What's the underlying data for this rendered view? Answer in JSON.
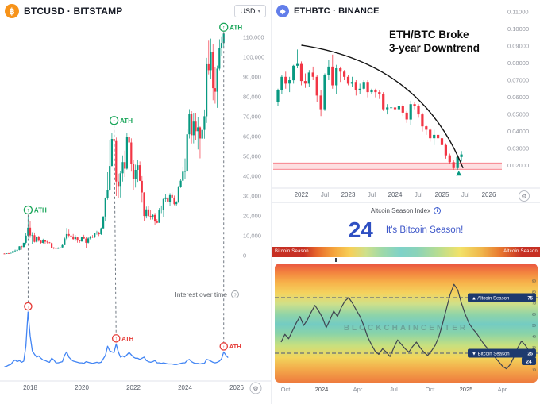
{
  "btc_panel": {
    "title": "BTCUSD · BITSTAMP",
    "currency": "USD",
    "ath_label": "ATH",
    "trends_title": "Interest over time",
    "y_tick_labels": [
      "110,000",
      "100,000",
      "90,000",
      "80,000",
      "70,000",
      "60,000",
      "50,000",
      "40,000",
      "30,000",
      "20,000",
      "10,000",
      "0"
    ],
    "x_tick_labels": [
      "2018",
      "2020",
      "2022",
      "2024",
      "2026"
    ]
  },
  "eth_panel": {
    "title": "ETHBTC · BINANCE",
    "annotation_line1": "ETH/BTC Broke",
    "annotation_line2": "3-year Downtrend",
    "y_tick_labels": [
      "0.11000",
      "0.10000",
      "0.09000",
      "0.08000",
      "0.07000",
      "0.06000",
      "0.05000",
      "0.04000",
      "0.03000",
      "0.02000"
    ],
    "x_tick_labels": [
      "2022",
      "Jul",
      "2023",
      "Jul",
      "2024",
      "Jul",
      "2025",
      "Jul",
      "2026"
    ]
  },
  "season_panel": {
    "header": "Altcoin Season Index",
    "value": "24",
    "status": "It's Bitcoin Season!",
    "bar_left_label": "Bitcoin Season",
    "bar_right_label": "Altcoin Season",
    "altcoin_badge": "Altcoin Season",
    "altcoin_threshold": "75",
    "bitcoin_badge": "Bitcoin Season",
    "bitcoin_threshold": "25",
    "current_badge": "24",
    "watermark": "BLOCKCHAINCENTER",
    "x_tick_labels": [
      "Oct",
      "2024",
      "Apr",
      "Jul",
      "Oct",
      "2025",
      "Apr"
    ]
  },
  "chart_data": [
    {
      "id": "btcusd",
      "type": "candlestick",
      "title": "BTCUSD · BITSTAMP",
      "ylabel": "USD",
      "ylim": [
        0,
        115000
      ],
      "x_start_year": 2017.0,
      "x_step_years": 0.083333,
      "x_tick_years": [
        2018,
        2020,
        2022,
        2024,
        2026
      ],
      "ath_markers": [
        {
          "year": 2017.92,
          "price": 19800
        },
        {
          "year": 2021.25,
          "price": 64900
        },
        {
          "year": 2025.5,
          "price": 111900
        }
      ],
      "ohlc": [
        [
          1000,
          1160,
          750,
          970
        ],
        [
          970,
          1200,
          920,
          1190
        ],
        [
          1190,
          1290,
          900,
          1080
        ],
        [
          1080,
          1350,
          1060,
          1350
        ],
        [
          1350,
          2760,
          1340,
          2300
        ],
        [
          2300,
          3000,
          2100,
          2480
        ],
        [
          2480,
          2920,
          1830,
          2870
        ],
        [
          2870,
          4750,
          2650,
          4700
        ],
        [
          4700,
          4950,
          2970,
          4340
        ],
        [
          4340,
          6450,
          4150,
          6450
        ],
        [
          6450,
          11400,
          5400,
          10100
        ],
        [
          10100,
          19800,
          9000,
          14100
        ],
        [
          14100,
          17200,
          9000,
          10200
        ],
        [
          10200,
          11790,
          6000,
          10300
        ],
        [
          10300,
          11650,
          6600,
          6930
        ],
        [
          6930,
          9760,
          6430,
          9240
        ],
        [
          9240,
          9990,
          7040,
          7490
        ],
        [
          7490,
          7750,
          5770,
          6400
        ],
        [
          6400,
          8500,
          6070,
          7730
        ],
        [
          7730,
          7760,
          5880,
          7030
        ],
        [
          7030,
          7400,
          6100,
          6620
        ],
        [
          6620,
          6850,
          6200,
          6300
        ],
        [
          6300,
          6550,
          3650,
          4020
        ],
        [
          4020,
          4300,
          3150,
          3740
        ],
        [
          3740,
          4100,
          3350,
          3430
        ],
        [
          3430,
          4200,
          3350,
          3820
        ],
        [
          3820,
          4130,
          3660,
          4100
        ],
        [
          4100,
          5600,
          4050,
          5270
        ],
        [
          5270,
          9070,
          5270,
          8560
        ],
        [
          8560,
          13880,
          7480,
          10820
        ],
        [
          10820,
          13130,
          9080,
          10080
        ],
        [
          10080,
          12320,
          9350,
          9630
        ],
        [
          9630,
          10900,
          7700,
          8290
        ],
        [
          8290,
          10350,
          7300,
          9150
        ],
        [
          9150,
          9520,
          6520,
          7550
        ],
        [
          7550,
          7750,
          6430,
          7190
        ],
        [
          7190,
          9570,
          6850,
          9350
        ],
        [
          9350,
          10500,
          8400,
          8540
        ],
        [
          8540,
          9200,
          3850,
          6440
        ],
        [
          6440,
          9450,
          6150,
          8620
        ],
        [
          8620,
          10000,
          8100,
          9450
        ],
        [
          9450,
          10380,
          8830,
          9140
        ],
        [
          9140,
          11440,
          8900,
          11340
        ],
        [
          11340,
          12480,
          10560,
          11650
        ],
        [
          11650,
          12050,
          9820,
          10780
        ],
        [
          10780,
          14100,
          10400,
          13800
        ],
        [
          13800,
          19860,
          13200,
          19700
        ],
        [
          19700,
          29300,
          17600,
          29000
        ],
        [
          29000,
          42000,
          28130,
          33100
        ],
        [
          33100,
          58350,
          32320,
          45140
        ],
        [
          45140,
          61800,
          44950,
          58790
        ],
        [
          58790,
          64900,
          46930,
          57720
        ],
        [
          57720,
          59500,
          30000,
          37330
        ],
        [
          37330,
          41330,
          28800,
          35040
        ],
        [
          35040,
          42450,
          29300,
          41460
        ],
        [
          41460,
          50500,
          37330,
          47110
        ],
        [
          47110,
          52920,
          39600,
          43790
        ],
        [
          43790,
          62000,
          43290,
          60000
        ],
        [
          60000,
          62500,
          53260,
          57000
        ],
        [
          57000,
          59100,
          42330,
          46210
        ],
        [
          46210,
          47990,
          32930,
          38480
        ],
        [
          38480,
          45820,
          34300,
          43190
        ],
        [
          43190,
          48190,
          37160,
          45540
        ],
        [
          45540,
          47450,
          37580,
          37630
        ],
        [
          37630,
          40020,
          26700,
          31790
        ],
        [
          31790,
          31960,
          17590,
          19940
        ],
        [
          19940,
          24670,
          18780,
          23290
        ],
        [
          23290,
          25200,
          19520,
          20050
        ],
        [
          20050,
          22790,
          18130,
          19420
        ],
        [
          19420,
          21080,
          18190,
          20490
        ],
        [
          20490,
          21470,
          15480,
          17160
        ],
        [
          17160,
          18370,
          16260,
          16540
        ],
        [
          16540,
          23950,
          16490,
          23130
        ],
        [
          23130,
          25250,
          21400,
          23140
        ],
        [
          23140,
          29180,
          19550,
          28470
        ],
        [
          28470,
          31050,
          26940,
          29230
        ],
        [
          29230,
          29820,
          25810,
          27210
        ],
        [
          27210,
          31430,
          24800,
          30470
        ],
        [
          30470,
          31850,
          28860,
          29230
        ],
        [
          29230,
          30240,
          25350,
          25930
        ],
        [
          25930,
          27480,
          24900,
          26960
        ],
        [
          26960,
          35150,
          26540,
          34650
        ],
        [
          34650,
          38400,
          34100,
          37710
        ],
        [
          37710,
          44700,
          37620,
          42270
        ],
        [
          42270,
          48970,
          38500,
          42580
        ],
        [
          42580,
          63930,
          41880,
          61130
        ],
        [
          61130,
          73790,
          59000,
          71280
        ],
        [
          71280,
          72790,
          56500,
          60640
        ],
        [
          60640,
          71950,
          56550,
          67520
        ],
        [
          67520,
          71990,
          58400,
          62670
        ],
        [
          62670,
          69990,
          53500,
          64620
        ],
        [
          64620,
          65100,
          49000,
          58970
        ],
        [
          58970,
          66480,
          52550,
          63330
        ],
        [
          63330,
          73620,
          58900,
          70220
        ],
        [
          70220,
          99650,
          66830,
          96450
        ],
        [
          96450,
          108270,
          91320,
          93430
        ],
        [
          93430,
          109360,
          89160,
          102400
        ],
        [
          102400,
          106500,
          78260,
          84350
        ],
        [
          84350,
          95000,
          76600,
          82550
        ],
        [
          82550,
          95770,
          74430,
          94180
        ],
        [
          94180,
          109000,
          93350,
          104600
        ],
        [
          104600,
          110500,
          100380,
          107170
        ],
        [
          107170,
          112000,
          105000,
          111900
        ]
      ]
    },
    {
      "id": "btc-search-interest",
      "type": "line",
      "title": "Interest over time",
      "ylim": [
        0,
        100
      ],
      "x_start_year": 2017.0,
      "x_step_years": 0.083333,
      "ath_markers": [
        {
          "year": 2017.92,
          "value": 100
        },
        {
          "year": 2021.33,
          "value": 44
        },
        {
          "year": 2025.5,
          "value": 30
        }
      ],
      "values": [
        4,
        5,
        7,
        8,
        13,
        16,
        13,
        15,
        12,
        14,
        40,
        100,
        58,
        32,
        26,
        21,
        23,
        19,
        16,
        15,
        13,
        12,
        19,
        16,
        11,
        11,
        12,
        13,
        24,
        30,
        21,
        17,
        14,
        13,
        12,
        11,
        11,
        10,
        13,
        12,
        11,
        10,
        11,
        12,
        11,
        12,
        18,
        24,
        40,
        32,
        30,
        29,
        44,
        30,
        21,
        23,
        21,
        25,
        29,
        25,
        21,
        19,
        19,
        17,
        19,
        21,
        15,
        13,
        12,
        13,
        15,
        11,
        11,
        10,
        11,
        10,
        9,
        9,
        9,
        8,
        8,
        9,
        10,
        11,
        11,
        15,
        17,
        13,
        11,
        10,
        10,
        9,
        10,
        10,
        17,
        16,
        14,
        12,
        11,
        12,
        14,
        18,
        30,
        24,
        20
      ]
    },
    {
      "id": "ethbtc",
      "type": "candlestick",
      "title": "ETHBTC · BINANCE",
      "ylim": [
        0.013,
        0.117
      ],
      "x_start_year": 2021.5,
      "x_step_years": 0.083333,
      "x_tick_years": [
        2022,
        2022.5,
        2023,
        2023.5,
        2024,
        2024.5,
        2025,
        2025.5,
        2026
      ],
      "support_zone": [
        0.0178,
        0.0215
      ],
      "trendline": {
        "start": [
          2022.0,
          0.0905
        ],
        "control": [
          2024.55,
          0.08
        ],
        "end": [
          2025.45,
          0.0185
        ]
      },
      "breakout_marker": [
        2025.36,
        0.015
      ],
      "ohlc": [
        [
          0.057,
          0.065,
          0.055,
          0.064
        ],
        [
          0.064,
          0.073,
          0.062,
          0.072
        ],
        [
          0.072,
          0.075,
          0.065,
          0.068
        ],
        [
          0.068,
          0.072,
          0.063,
          0.07
        ],
        [
          0.07,
          0.079,
          0.068,
          0.0785
        ],
        [
          0.0785,
          0.088,
          0.077,
          0.0795
        ],
        [
          0.0795,
          0.081,
          0.067,
          0.0695
        ],
        [
          0.0695,
          0.074,
          0.0655,
          0.068
        ],
        [
          0.068,
          0.076,
          0.066,
          0.0745
        ],
        [
          0.0745,
          0.078,
          0.07,
          0.072
        ],
        [
          0.072,
          0.073,
          0.057,
          0.061
        ],
        [
          0.061,
          0.064,
          0.049,
          0.053
        ],
        [
          0.053,
          0.074,
          0.052,
          0.073
        ],
        [
          0.073,
          0.082,
          0.07,
          0.078
        ],
        [
          0.078,
          0.085,
          0.065,
          0.067
        ],
        [
          0.067,
          0.079,
          0.062,
          0.077
        ],
        [
          0.077,
          0.078,
          0.069,
          0.075
        ],
        [
          0.075,
          0.076,
          0.07,
          0.072
        ],
        [
          0.072,
          0.073,
          0.067,
          0.068
        ],
        [
          0.068,
          0.072,
          0.066,
          0.069
        ],
        [
          0.069,
          0.07,
          0.061,
          0.064
        ],
        [
          0.064,
          0.068,
          0.062,
          0.065
        ],
        [
          0.065,
          0.07,
          0.064,
          0.069
        ],
        [
          0.069,
          0.07,
          0.06,
          0.063
        ],
        [
          0.063,
          0.065,
          0.062,
          0.064
        ],
        [
          0.064,
          0.065,
          0.06,
          0.063
        ],
        [
          0.063,
          0.064,
          0.059,
          0.062
        ],
        [
          0.062,
          0.063,
          0.052,
          0.053
        ],
        [
          0.053,
          0.056,
          0.05,
          0.054
        ],
        [
          0.054,
          0.056,
          0.051,
          0.054
        ],
        [
          0.054,
          0.056,
          0.052,
          0.053
        ],
        [
          0.053,
          0.058,
          0.052,
          0.055
        ],
        [
          0.055,
          0.056,
          0.049,
          0.051
        ],
        [
          0.051,
          0.052,
          0.045,
          0.047
        ],
        [
          0.047,
          0.058,
          0.044,
          0.056
        ],
        [
          0.056,
          0.057,
          0.053,
          0.055
        ],
        [
          0.055,
          0.056,
          0.048,
          0.05
        ],
        [
          0.05,
          0.051,
          0.04,
          0.043
        ],
        [
          0.043,
          0.044,
          0.038,
          0.041
        ],
        [
          0.041,
          0.042,
          0.034,
          0.036
        ],
        [
          0.036,
          0.041,
          0.032,
          0.038
        ],
        [
          0.038,
          0.04,
          0.035,
          0.036
        ],
        [
          0.036,
          0.037,
          0.029,
          0.032
        ],
        [
          0.032,
          0.033,
          0.024,
          0.026
        ],
        [
          0.026,
          0.027,
          0.021,
          0.022
        ],
        [
          0.022,
          0.023,
          0.0175,
          0.0185
        ],
        [
          0.0185,
          0.026,
          0.0175,
          0.025
        ],
        [
          0.025,
          0.0285,
          0.0225,
          0.0265
        ]
      ]
    },
    {
      "id": "altcoin-season-index",
      "type": "line",
      "title": "Altcoin Season Index",
      "current_value": 24,
      "season": "Bitcoin Season",
      "thresholds": {
        "altcoin_season": 75,
        "bitcoin_season": 25
      },
      "ylim": [
        0,
        100
      ],
      "y_ticks": [
        90,
        80,
        70,
        60,
        50,
        40,
        30,
        20,
        10
      ],
      "x_start_year": 2023.72,
      "x_step_years": 0.026,
      "x_tick_years": [
        2023.75,
        2024.0,
        2024.25,
        2024.5,
        2024.75,
        2025.0,
        2025.25
      ],
      "values": [
        35,
        42,
        38,
        45,
        52,
        58,
        50,
        55,
        62,
        68,
        63,
        57,
        48,
        55,
        63,
        58,
        66,
        72,
        75,
        70,
        64,
        58,
        50,
        40,
        33,
        27,
        24,
        29,
        26,
        22,
        30,
        37,
        33,
        29,
        26,
        31,
        35,
        30,
        26,
        23,
        27,
        32,
        40,
        52,
        65,
        78,
        87,
        82,
        70,
        60,
        52,
        47,
        43,
        38,
        33,
        29,
        25,
        21,
        17,
        13,
        11,
        15,
        22,
        30,
        36,
        32,
        27,
        24
      ]
    }
  ]
}
